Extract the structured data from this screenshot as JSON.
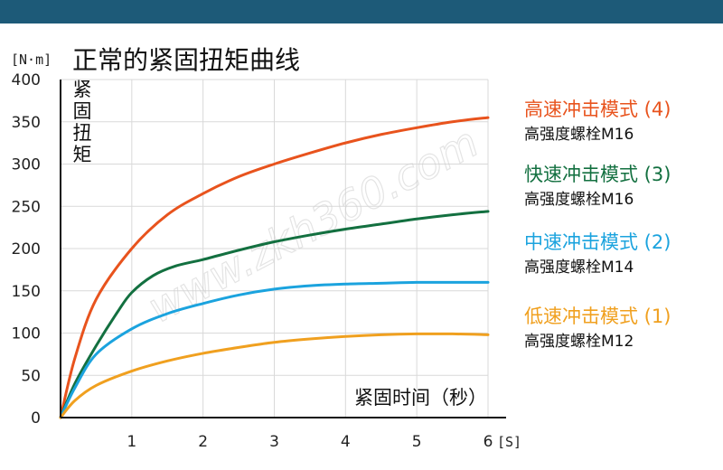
{
  "title": "正常的紧固扭矩曲线",
  "watermark": "www.zkh360.com",
  "chart_data": {
    "type": "line",
    "title": "正常的紧固扭矩曲线",
    "ylabel": "紧固扭矩",
    "xlabel": "紧固时间（秒）",
    "y_unit": "[N·m]",
    "x_unit": "[S]",
    "xlim": [
      0,
      6
    ],
    "ylim": [
      0,
      400
    ],
    "x_ticks": [
      "1",
      "2",
      "3",
      "4",
      "5",
      "6"
    ],
    "y_ticks": [
      "0",
      "50",
      "100",
      "150",
      "200",
      "250",
      "300",
      "350",
      "400"
    ],
    "grid": true,
    "legend_position": "right",
    "series": [
      {
        "name": "高速冲击模式 (4)",
        "sub": "高强度螺栓M16",
        "color": "#e8531d",
        "x": [
          0,
          0.2,
          0.5,
          1.0,
          1.5,
          2.0,
          2.5,
          3.0,
          3.5,
          4.0,
          4.5,
          5.0,
          5.5,
          6.0
        ],
        "y": [
          0,
          70,
          140,
          200,
          240,
          265,
          285,
          300,
          313,
          325,
          335,
          343,
          350,
          355
        ]
      },
      {
        "name": "快速冲击模式 (3)",
        "sub": "高强度螺栓M16",
        "color": "#137040",
        "x": [
          0,
          0.2,
          0.5,
          0.8,
          1.0,
          1.3,
          1.6,
          2.0,
          2.5,
          3.0,
          3.5,
          4.0,
          4.5,
          5.0,
          5.5,
          6.0
        ],
        "y": [
          0,
          40,
          85,
          125,
          148,
          168,
          179,
          187,
          198,
          208,
          216,
          223,
          229,
          235,
          240,
          244
        ]
      },
      {
        "name": "中速冲击模式 (2)",
        "sub": "高强度螺栓M14",
        "color": "#1ba3de",
        "x": [
          0,
          0.2,
          0.5,
          1.0,
          1.5,
          2.0,
          2.5,
          3.0,
          3.5,
          4.0,
          4.5,
          5.0,
          5.5,
          6.0
        ],
        "y": [
          0,
          35,
          75,
          105,
          123,
          135,
          145,
          152,
          156,
          158,
          159,
          160,
          160,
          160
        ]
      },
      {
        "name": "低速冲击模式 (1)",
        "sub": "高强度螺栓M12",
        "color": "#f0a01f",
        "x": [
          0,
          0.2,
          0.5,
          1.0,
          1.5,
          2.0,
          2.5,
          3.0,
          3.5,
          4.0,
          4.5,
          5.0,
          5.5,
          6.0
        ],
        "y": [
          0,
          20,
          38,
          55,
          67,
          76,
          83,
          89,
          93,
          96,
          98,
          99,
          99,
          98
        ]
      }
    ]
  }
}
